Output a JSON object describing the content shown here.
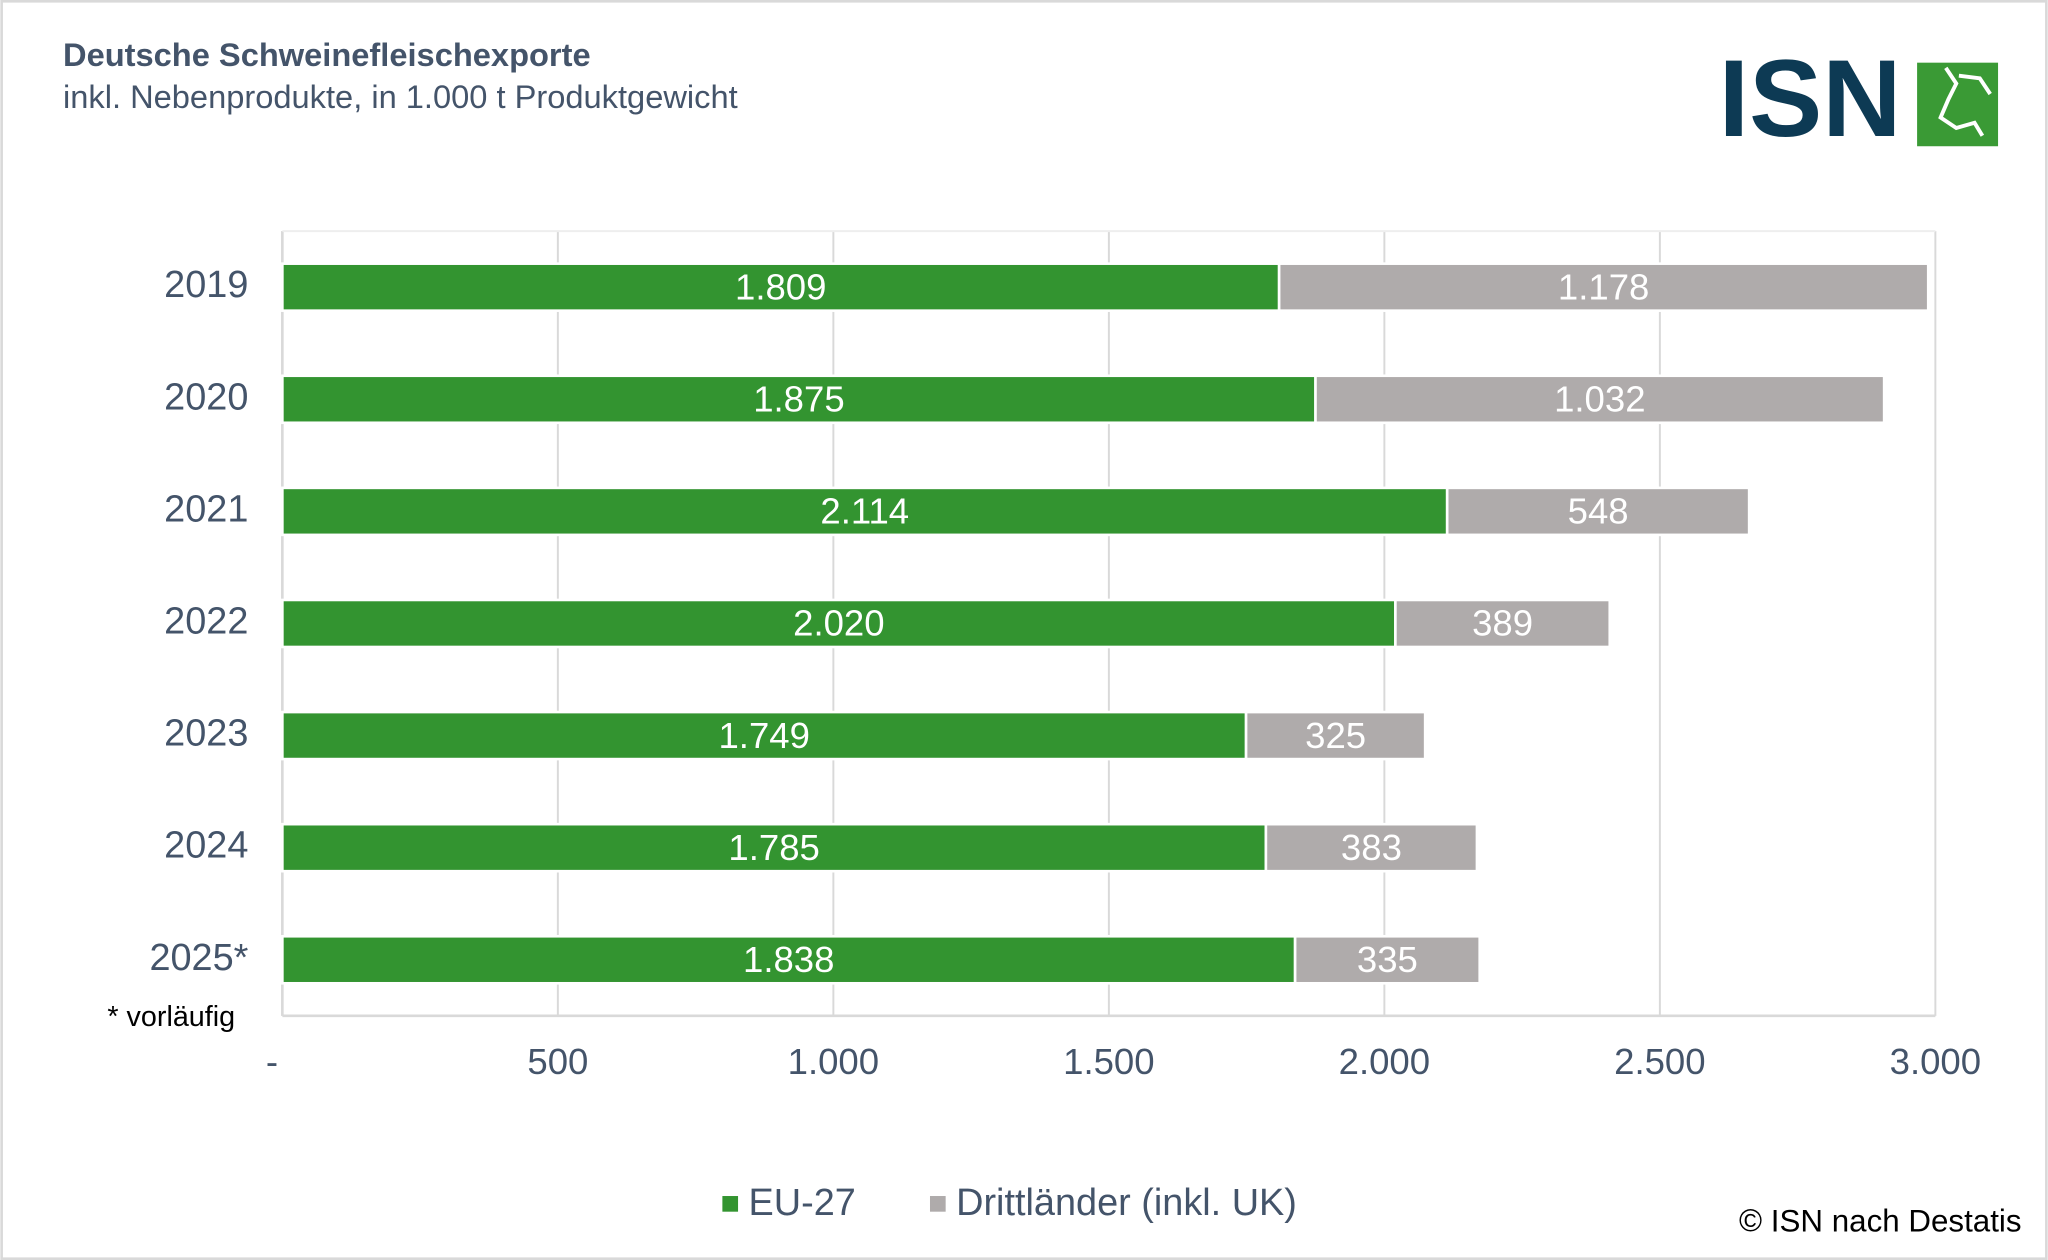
{
  "chart_data": {
    "type": "stacked-bar-horizontal",
    "title": "Deutsche Schweinefleischexporte",
    "subtitle": "inkl. Nebenprodukte, in 1.000 t Produktgewicht",
    "logo": "ISN",
    "note": "* vorläufig",
    "source": "© ISN nach Destatis",
    "categories": [
      "2019",
      "2020",
      "2021",
      "2022",
      "2023",
      "2024",
      "2025*"
    ],
    "series": [
      {
        "name": "EU-27",
        "color": "#339430",
        "values": [
          1809,
          1875,
          2114,
          2020,
          1749,
          1785,
          1838
        ],
        "value_labels": [
          "1.809",
          "1.875",
          "2.114",
          "2.020",
          "1.749",
          "1.785",
          "1.838"
        ]
      },
      {
        "name": "Drittländer (inkl. UK)",
        "color": "#afabab",
        "values": [
          1178,
          1032,
          548,
          389,
          325,
          383,
          335
        ],
        "value_labels": [
          "1.178",
          "1.032",
          "548",
          "389",
          "325",
          "383",
          "335"
        ]
      }
    ],
    "xlim": [
      0,
      3000
    ],
    "xticks": [
      {
        "value": 0,
        "label": "-"
      },
      500,
      {
        "value": 1000,
        "label": "1.000"
      },
      {
        "value": 1500,
        "label": "1.500"
      },
      {
        "value": 2000,
        "label": "2.000"
      },
      {
        "value": 2500,
        "label": "2.500"
      },
      {
        "value": 3000,
        "label": "3.000"
      }
    ],
    "grid": true
  }
}
